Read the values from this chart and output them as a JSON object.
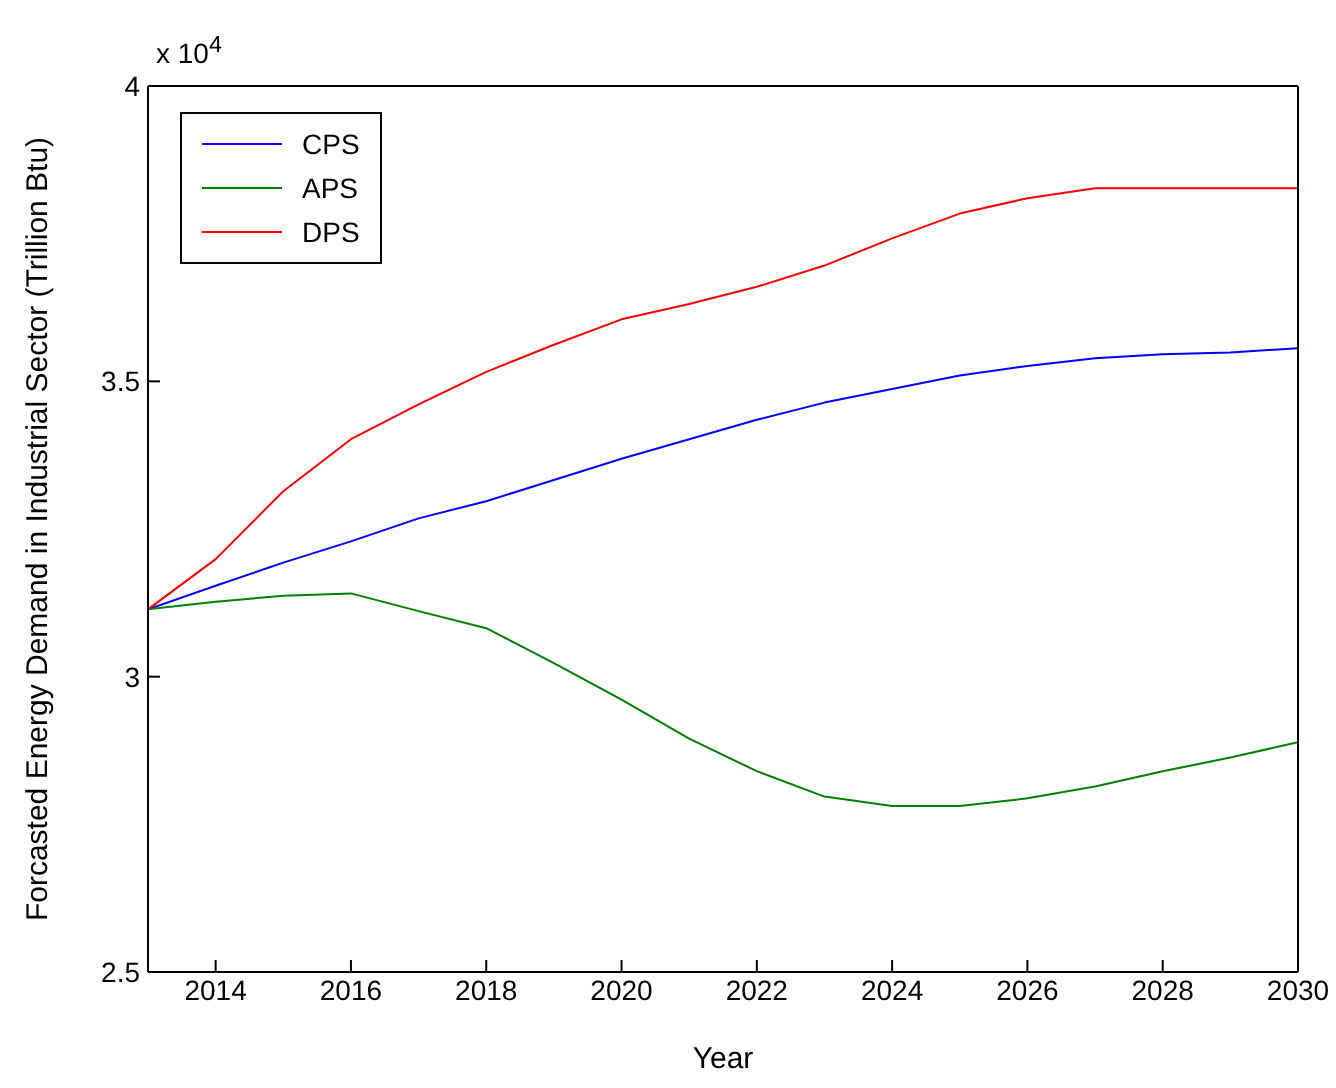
{
  "chart_data": {
    "type": "line",
    "xlabel": "Year",
    "ylabel": "Forcasted Energy Demand in Industrial Sector (Trillion Btu)",
    "annotations": [
      "x 10$^{4}$"
    ],
    "x": [
      2013,
      2014,
      2015,
      2016,
      2017,
      2018,
      2019,
      2020,
      2021,
      2022,
      2023,
      2024,
      2025,
      2026,
      2027,
      2028,
      2029,
      2030
    ],
    "series": [
      {
        "name": "CPS",
        "color": "#0000ff",
        "values": [
          3.114,
          3.154,
          3.193,
          3.229,
          3.268,
          3.297,
          3.333,
          3.369,
          3.402,
          3.435,
          3.464,
          3.487,
          3.51,
          3.526,
          3.539,
          3.546,
          3.549,
          3.556
        ]
      },
      {
        "name": "APS",
        "color": "#008000",
        "values": [
          3.114,
          3.127,
          3.137,
          3.141,
          3.111,
          3.082,
          3.023,
          2.961,
          2.895,
          2.84,
          2.797,
          2.781,
          2.781,
          2.794,
          2.814,
          2.84,
          2.863,
          2.889
        ]
      },
      {
        "name": "DPS",
        "color": "#ff0000",
        "values": [
          3.114,
          3.199,
          3.314,
          3.402,
          3.461,
          3.516,
          3.562,
          3.605,
          3.631,
          3.66,
          3.696,
          3.742,
          3.784,
          3.81,
          3.827,
          3.827,
          3.827,
          3.827
        ]
      }
    ],
    "xlim": [
      2013,
      2030
    ],
    "xticks": [
      2014,
      2016,
      2018,
      2020,
      2022,
      2024,
      2026,
      2028,
      2030
    ],
    "ylim": [
      2.5,
      4
    ],
    "yticks": [
      2.5,
      3,
      3.5,
      4
    ],
    "grid": false,
    "legend": "top left",
    "marker": "none",
    "line_style": "solid"
  }
}
